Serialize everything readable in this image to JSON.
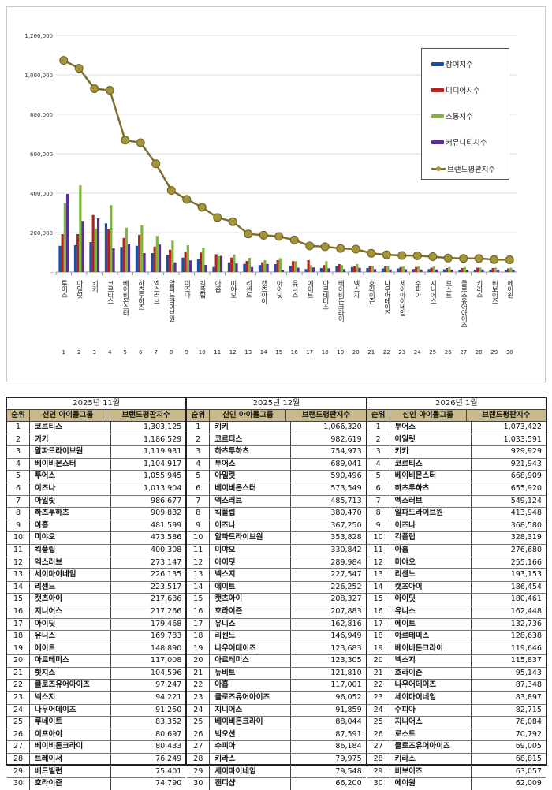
{
  "chart_data": {
    "type": "bar",
    "y_ticks": [
      "-",
      "200,000",
      "400,000",
      "600,000",
      "800,000",
      "1,000,000",
      "1,200,000"
    ],
    "ylim": [
      0,
      1200000
    ],
    "grid": true,
    "legend_placement": "top-right",
    "categories": [
      "투어스",
      "아일릿",
      "키키",
      "코르티스",
      "베이비몬스터",
      "하츠투하츠",
      "엑스러브",
      "알파드라이브원",
      "이즈나",
      "킥플립",
      "아홉",
      "미야오",
      "리센느",
      "캣츠아이",
      "아이딧",
      "유니스",
      "에이트",
      "아르테미스",
      "베이비돈크라이",
      "넥스지",
      "호라이즌",
      "나우어데이즈",
      "세이마이네임",
      "수피아",
      "지니어스",
      "로스트",
      "클로즈유어아이즈",
      "키라스",
      "비보이즈",
      "에이원"
    ],
    "ranks": [
      "1",
      "2",
      "3",
      "4",
      "5",
      "6",
      "7",
      "8",
      "9",
      "10",
      "11",
      "12",
      "13",
      "14",
      "15",
      "16",
      "17",
      "18",
      "19",
      "20",
      "21",
      "22",
      "23",
      "24",
      "25",
      "26",
      "27",
      "28",
      "29",
      "30"
    ],
    "series": [
      {
        "name": "참여지수",
        "kind": "bar",
        "color": "#1f4fa3",
        "values": [
          133000,
          136000,
          152000,
          247000,
          127000,
          133000,
          96000,
          87000,
          73000,
          65000,
          25000,
          49000,
          41000,
          35000,
          40000,
          30000,
          15000,
          20000,
          30000,
          25000,
          20000,
          18000,
          18000,
          15000,
          15000,
          14000,
          12000,
          12000,
          10000,
          10000
        ]
      },
      {
        "name": "미디어지수",
        "kind": "bar",
        "color": "#b52222",
        "values": [
          192000,
          192000,
          289000,
          216000,
          173000,
          189000,
          129000,
          113000,
          103000,
          99000,
          90000,
          73000,
          56000,
          50000,
          60000,
          55000,
          60000,
          35000,
          40000,
          30000,
          30000,
          28000,
          25000,
          25000,
          22000,
          20000,
          20000,
          22000,
          20000,
          18000
        ]
      },
      {
        "name": "소통지수",
        "kind": "bar",
        "color": "#7db53a",
        "values": [
          349000,
          440000,
          219000,
          339000,
          225000,
          236000,
          183000,
          159000,
          136000,
          123000,
          80000,
          89000,
          72000,
          60000,
          70000,
          55000,
          35000,
          55000,
          35000,
          40000,
          30000,
          28000,
          27000,
          30000,
          28000,
          25000,
          25000,
          22000,
          22000,
          22000
        ]
      },
      {
        "name": "커뮤니티지수",
        "kind": "bar",
        "color": "#5a2e96",
        "values": [
          396000,
          259000,
          272000,
          120000,
          140000,
          96000,
          139000,
          49000,
          59000,
          36000,
          82000,
          43000,
          25000,
          41000,
          10000,
          22000,
          23000,
          19000,
          15000,
          21000,
          15000,
          13000,
          14000,
          13000,
          13000,
          12000,
          12000,
          13000,
          11000,
          12000
        ]
      },
      {
        "name": "브랜드평판지수",
        "kind": "line",
        "color": "#7d6e2c",
        "values": [
          1073422,
          1033591,
          929929,
          921943,
          668909,
          655920,
          549124,
          413948,
          368580,
          328319,
          276680,
          255166,
          193153,
          186454,
          180461,
          162448,
          132736,
          128638,
          119646,
          115837,
          95143,
          87348,
          83897,
          82715,
          78084,
          70792,
          69005,
          68815,
          63057,
          62009
        ]
      }
    ]
  },
  "table": {
    "headers": {
      "rank": "순위",
      "name": "신인 아이돌그룹",
      "score": "브랜드평판지수"
    },
    "sections": [
      {
        "title": "2025년 11월",
        "rows": [
          [
            "1",
            "코르티스",
            "1,303,125"
          ],
          [
            "2",
            "키키",
            "1,186,529"
          ],
          [
            "3",
            "알파드라이브원",
            "1,119,931"
          ],
          [
            "4",
            "베이비몬스터",
            "1,104,917"
          ],
          [
            "5",
            "투어스",
            "1,055,945"
          ],
          [
            "6",
            "이즈나",
            "1,013,904"
          ],
          [
            "7",
            "아일릿",
            "986,677"
          ],
          [
            "8",
            "하츠투하츠",
            "909,832"
          ],
          [
            "9",
            "아홉",
            "481,599"
          ],
          [
            "10",
            "미야오",
            "473,586"
          ],
          [
            "11",
            "킥플립",
            "400,308"
          ],
          [
            "12",
            "엑스러브",
            "273,147"
          ],
          [
            "13",
            "세이마이네임",
            "226,135"
          ],
          [
            "14",
            "리센느",
            "223,517"
          ],
          [
            "15",
            "캣츠아이",
            "217,686"
          ],
          [
            "16",
            "지니어스",
            "217,266"
          ],
          [
            "17",
            "아이딧",
            "179,468"
          ],
          [
            "18",
            "유니스",
            "169,783"
          ],
          [
            "19",
            "에이트",
            "148,890"
          ],
          [
            "20",
            "아르테미스",
            "117,008"
          ],
          [
            "21",
            "힛지스",
            "104,596"
          ],
          [
            "22",
            "클로즈유어아이즈",
            "97,247"
          ],
          [
            "23",
            "넥스지",
            "94,221"
          ],
          [
            "24",
            "나우어데이즈",
            "91,250"
          ],
          [
            "25",
            "루네이트",
            "83,352"
          ],
          [
            "26",
            "이프아이",
            "80,697"
          ],
          [
            "27",
            "베이비돈크라이",
            "80,433"
          ],
          [
            "28",
            "트레이서",
            "76,249"
          ],
          [
            "29",
            "배드빌런",
            "75,401"
          ],
          [
            "30",
            "호라이즌",
            "74,790"
          ]
        ]
      },
      {
        "title": "2025년 12월",
        "rows": [
          [
            "1",
            "키키",
            "1,066,320"
          ],
          [
            "2",
            "코르티스",
            "982,619"
          ],
          [
            "3",
            "하츠투하츠",
            "754,973"
          ],
          [
            "4",
            "투어스",
            "689,041"
          ],
          [
            "5",
            "아일릿",
            "590,496"
          ],
          [
            "6",
            "베이비몬스터",
            "573,549"
          ],
          [
            "7",
            "엑스러브",
            "485,713"
          ],
          [
            "8",
            "킥플립",
            "380,470"
          ],
          [
            "9",
            "이즈나",
            "367,250"
          ],
          [
            "10",
            "알파드라이브원",
            "353,828"
          ],
          [
            "11",
            "미야오",
            "330,842"
          ],
          [
            "12",
            "아이딧",
            "289,984"
          ],
          [
            "13",
            "넥스지",
            "227,547"
          ],
          [
            "14",
            "에이트",
            "226,252"
          ],
          [
            "15",
            "캣츠아이",
            "208,327"
          ],
          [
            "16",
            "호라이즌",
            "207,883"
          ],
          [
            "17",
            "유니스",
            "162,816"
          ],
          [
            "18",
            "리센느",
            "146,949"
          ],
          [
            "19",
            "나우어데이즈",
            "123,683"
          ],
          [
            "20",
            "아르테미스",
            "123,305"
          ],
          [
            "21",
            "뉴비트",
            "121,810"
          ],
          [
            "22",
            "아홉",
            "117,001"
          ],
          [
            "23",
            "클로즈유어아이즈",
            "96,052"
          ],
          [
            "24",
            "지니어스",
            "91,859"
          ],
          [
            "25",
            "베이비돈크라이",
            "88,044"
          ],
          [
            "26",
            "빅오션",
            "87,591"
          ],
          [
            "27",
            "수피아",
            "86,184"
          ],
          [
            "28",
            "키라스",
            "79,975"
          ],
          [
            "29",
            "세이마이네임",
            "79,548"
          ],
          [
            "30",
            "캔디샵",
            "66,200"
          ]
        ]
      },
      {
        "title": "2026년 1월",
        "rows": [
          [
            "1",
            "투어스",
            "1,073,422"
          ],
          [
            "2",
            "아일릿",
            "1,033,591"
          ],
          [
            "3",
            "키키",
            "929,929"
          ],
          [
            "4",
            "코르티스",
            "921,943"
          ],
          [
            "5",
            "베이비몬스터",
            "668,909"
          ],
          [
            "6",
            "하츠투하츠",
            "655,920"
          ],
          [
            "7",
            "엑스러브",
            "549,124"
          ],
          [
            "8",
            "알파드라이브원",
            "413,948"
          ],
          [
            "9",
            "이즈나",
            "368,580"
          ],
          [
            "10",
            "킥플립",
            "328,319"
          ],
          [
            "11",
            "아홉",
            "276,680"
          ],
          [
            "12",
            "미야오",
            "255,166"
          ],
          [
            "13",
            "리센느",
            "193,153"
          ],
          [
            "14",
            "캣츠아이",
            "186,454"
          ],
          [
            "15",
            "아이딧",
            "180,461"
          ],
          [
            "16",
            "유니스",
            "162,448"
          ],
          [
            "17",
            "에이트",
            "132,736"
          ],
          [
            "18",
            "아르테미스",
            "128,638"
          ],
          [
            "19",
            "베이비돈크라이",
            "119,646"
          ],
          [
            "20",
            "넥스지",
            "115,837"
          ],
          [
            "21",
            "호라이즌",
            "95,143"
          ],
          [
            "22",
            "나우어데이즈",
            "87,348"
          ],
          [
            "23",
            "세이마이네임",
            "83,897"
          ],
          [
            "24",
            "수피아",
            "82,715"
          ],
          [
            "25",
            "지니어스",
            "78,084"
          ],
          [
            "26",
            "로스트",
            "70,792"
          ],
          [
            "27",
            "클로즈유어아이즈",
            "69,005"
          ],
          [
            "28",
            "키라스",
            "68,815"
          ],
          [
            "29",
            "비보이즈",
            "63,057"
          ],
          [
            "30",
            "에이원",
            "62,009"
          ]
        ]
      }
    ]
  }
}
